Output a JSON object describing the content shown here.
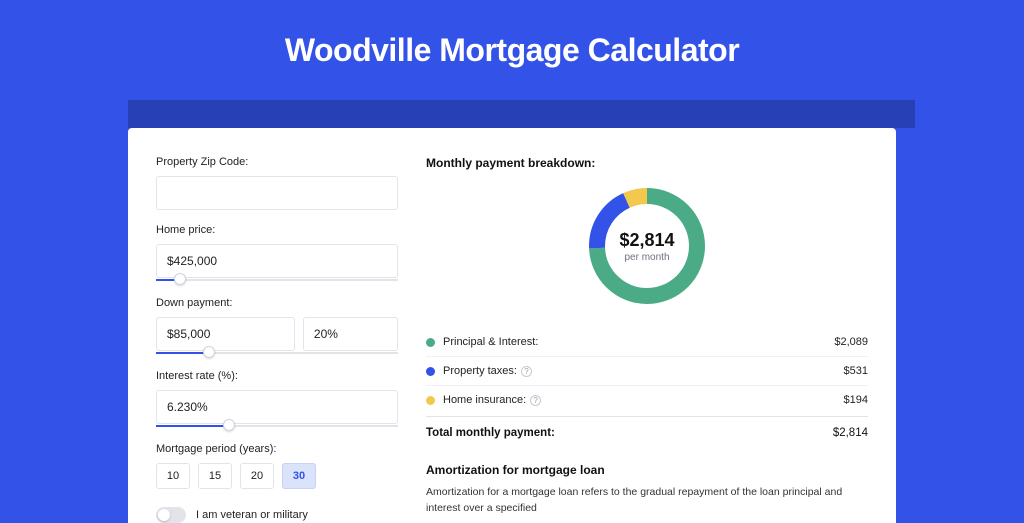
{
  "page": {
    "title": "Woodville Mortgage Calculator",
    "background_color": "#3353e8"
  },
  "form": {
    "zip": {
      "label": "Property Zip Code:",
      "value": ""
    },
    "home_price": {
      "label": "Home price:",
      "value": "$425,000",
      "slider_pct": 10
    },
    "down_payment": {
      "label": "Down payment:",
      "amount": "$85,000",
      "pct": "20%",
      "slider_pct": 22
    },
    "interest_rate": {
      "label": "Interest rate (%):",
      "value": "6.230%",
      "slider_pct": 30
    },
    "period": {
      "label": "Mortgage period (years):",
      "options": [
        "10",
        "15",
        "20",
        "30"
      ],
      "active_index": 3
    },
    "veteran": {
      "label": "I am veteran or military",
      "on": false
    }
  },
  "breakdown": {
    "title": "Monthly payment breakdown:",
    "donut": {
      "amount": "$2,814",
      "sub": "per month",
      "segments": [
        {
          "color": "#4aab86",
          "pct": 74.2
        },
        {
          "color": "#3353e8",
          "pct": 18.9
        },
        {
          "color": "#f2c94c",
          "pct": 6.9
        }
      ],
      "stroke_width": 16,
      "bg_color": "#ffffff"
    },
    "items": [
      {
        "swatch": "#4aab86",
        "label": "Principal & Interest:",
        "info": false,
        "value": "$2,089"
      },
      {
        "swatch": "#3353e8",
        "label": "Property taxes:",
        "info": true,
        "value": "$531"
      },
      {
        "swatch": "#f2c94c",
        "label": "Home insurance:",
        "info": true,
        "value": "$194"
      }
    ],
    "total": {
      "label": "Total monthly payment:",
      "value": "$2,814"
    }
  },
  "amortization": {
    "title": "Amortization for mortgage loan",
    "body": "Amortization for a mortgage loan refers to the gradual repayment of the loan principal and interest over a specified"
  }
}
